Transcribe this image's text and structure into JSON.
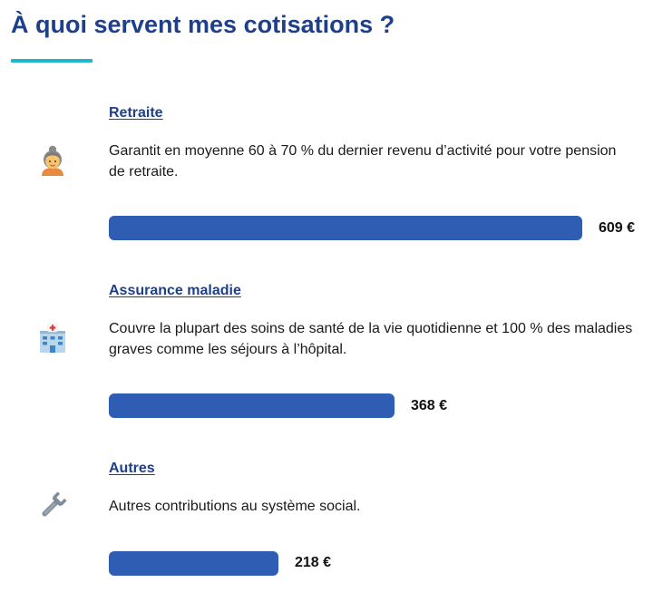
{
  "page": {
    "title": "À quoi servent mes cotisations ?"
  },
  "colors": {
    "title": "#1e3f8a",
    "underline_accent": "#21b7c9",
    "bar": "#2f5db4"
  },
  "bar_scale_max": 609,
  "sections": [
    {
      "label": "Retraite",
      "icon": "older-woman-icon",
      "description": "Garantit en moyenne 60 à 70 % du dernier revenu d’activité pour votre pension de retraite.",
      "amount": 609,
      "amount_label": "609 €"
    },
    {
      "label": "Assurance maladie",
      "icon": "hospital-icon",
      "description": "Couvre la plupart des soins de santé de la vie quotidienne et 100 % des maladies graves comme les séjours à l’hôpital.",
      "amount": 368,
      "amount_label": "368 €"
    },
    {
      "label": "Autres",
      "icon": "wrench-icon",
      "description": "Autres contributions au système social.",
      "amount": 218,
      "amount_label": "218 €"
    }
  ]
}
